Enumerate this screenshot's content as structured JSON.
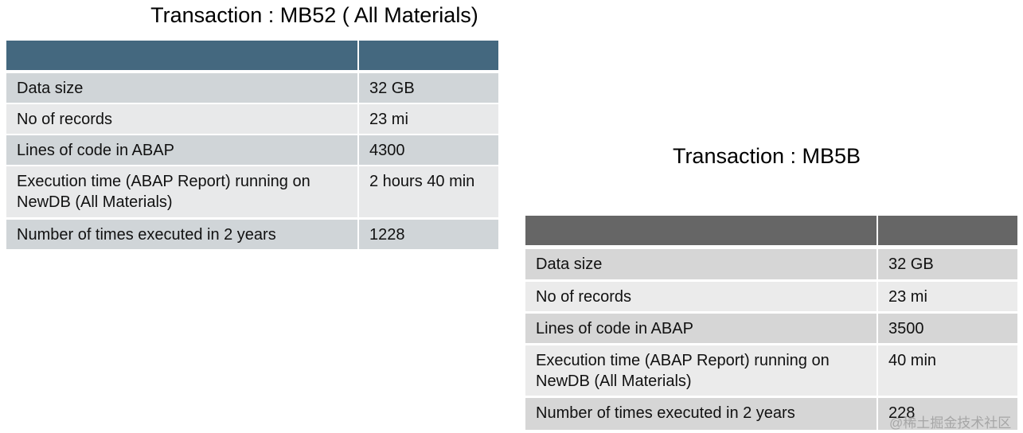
{
  "tables": [
    {
      "title": "Transaction : MB52 ( All Materials)",
      "rows": [
        [
          "Data size",
          "32 GB"
        ],
        [
          "No of records",
          "23 mi"
        ],
        [
          "Lines of code in ABAP",
          "4300"
        ],
        [
          "Execution time (ABAP Report) running on NewDB (All Materials)",
          "2 hours 40 min"
        ],
        [
          "Number of times executed in 2 years",
          "1228"
        ]
      ]
    },
    {
      "title": "Transaction : MB5B",
      "rows": [
        [
          "Data size",
          "32 GB"
        ],
        [
          "No of records",
          "23 mi"
        ],
        [
          "Lines of code in ABAP",
          "3500"
        ],
        [
          "Execution time (ABAP Report) running on NewDB (All Materials)",
          "40 min"
        ],
        [
          "Number of times executed in 2 years",
          "228"
        ]
      ]
    }
  ],
  "watermark": "@稀土掘金技术社区"
}
